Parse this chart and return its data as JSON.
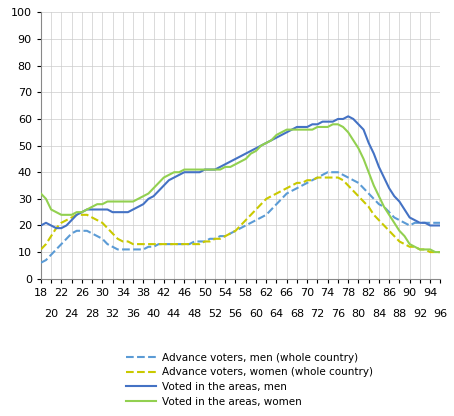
{
  "ages": [
    18,
    19,
    20,
    21,
    22,
    23,
    24,
    25,
    26,
    27,
    28,
    29,
    30,
    31,
    32,
    33,
    34,
    35,
    36,
    37,
    38,
    39,
    40,
    41,
    42,
    43,
    44,
    45,
    46,
    47,
    48,
    49,
    50,
    51,
    52,
    53,
    54,
    55,
    56,
    57,
    58,
    59,
    60,
    61,
    62,
    63,
    64,
    65,
    66,
    67,
    68,
    69,
    70,
    71,
    72,
    73,
    74,
    75,
    76,
    77,
    78,
    79,
    80,
    81,
    82,
    83,
    84,
    85,
    86,
    87,
    88,
    89,
    90,
    91,
    92,
    93,
    94,
    95,
    96
  ],
  "advance_men": [
    6,
    7,
    9,
    11,
    13,
    15,
    17,
    18,
    18,
    18,
    17,
    16,
    15,
    13,
    12,
    11,
    11,
    11,
    11,
    11,
    11,
    12,
    12,
    13,
    13,
    13,
    13,
    13,
    13,
    13,
    14,
    14,
    14,
    15,
    15,
    16,
    16,
    17,
    18,
    19,
    20,
    21,
    22,
    23,
    24,
    26,
    28,
    30,
    32,
    33,
    34,
    35,
    36,
    37,
    38,
    39,
    40,
    40,
    40,
    39,
    38,
    37,
    36,
    34,
    32,
    30,
    28,
    27,
    25,
    23,
    22,
    21,
    20,
    21,
    21,
    21,
    21,
    21,
    21
  ],
  "advance_women": [
    11,
    13,
    16,
    19,
    21,
    22,
    23,
    24,
    24,
    24,
    23,
    22,
    21,
    19,
    17,
    15,
    14,
    14,
    13,
    13,
    13,
    13,
    13,
    13,
    13,
    13,
    13,
    13,
    13,
    13,
    13,
    13,
    14,
    14,
    15,
    15,
    16,
    17,
    18,
    20,
    22,
    24,
    26,
    28,
    30,
    31,
    32,
    33,
    34,
    35,
    36,
    36,
    37,
    37,
    38,
    38,
    38,
    38,
    38,
    37,
    35,
    33,
    31,
    29,
    27,
    24,
    22,
    20,
    18,
    16,
    14,
    13,
    12,
    12,
    11,
    11,
    10,
    10,
    10
  ],
  "voted_men": [
    20,
    21,
    20,
    19,
    19,
    20,
    22,
    24,
    25,
    26,
    26,
    26,
    26,
    26,
    25,
    25,
    25,
    25,
    26,
    27,
    28,
    30,
    31,
    33,
    35,
    37,
    38,
    39,
    40,
    40,
    40,
    40,
    41,
    41,
    41,
    42,
    43,
    44,
    45,
    46,
    47,
    48,
    49,
    50,
    51,
    52,
    53,
    54,
    55,
    56,
    57,
    57,
    57,
    58,
    58,
    59,
    59,
    59,
    60,
    60,
    61,
    60,
    58,
    56,
    51,
    47,
    42,
    38,
    34,
    31,
    29,
    26,
    23,
    22,
    21,
    21,
    20,
    20,
    20
  ],
  "voted_women": [
    32,
    30,
    26,
    25,
    24,
    24,
    24,
    25,
    25,
    26,
    27,
    28,
    28,
    29,
    29,
    29,
    29,
    29,
    29,
    30,
    31,
    32,
    34,
    36,
    38,
    39,
    40,
    40,
    41,
    41,
    41,
    41,
    41,
    41,
    41,
    41,
    42,
    42,
    43,
    44,
    45,
    47,
    48,
    50,
    51,
    52,
    54,
    55,
    56,
    56,
    56,
    56,
    56,
    56,
    57,
    57,
    57,
    58,
    58,
    57,
    55,
    52,
    49,
    45,
    40,
    35,
    31,
    27,
    24,
    21,
    18,
    16,
    13,
    12,
    11,
    11,
    11,
    10,
    10
  ],
  "ylim": [
    0,
    100
  ],
  "xtick_top": [
    18,
    22,
    26,
    30,
    34,
    38,
    42,
    46,
    50,
    54,
    58,
    62,
    66,
    70,
    74,
    78,
    82,
    86,
    90,
    94
  ],
  "xtick_bottom": [
    20,
    24,
    28,
    32,
    36,
    40,
    44,
    48,
    52,
    56,
    60,
    64,
    68,
    72,
    76,
    80,
    84,
    88,
    92,
    96
  ],
  "yticks": [
    0,
    10,
    20,
    30,
    40,
    50,
    60,
    70,
    80,
    90,
    100
  ],
  "legend_labels": [
    "Advance voters, men (whole country)",
    "Advance voters, women (whole country)",
    "Voted in the areas, men",
    "Voted in the areas, women"
  ],
  "line_color_advance_men": "#5b9bd5",
  "line_color_advance_women": "#c9c900",
  "line_color_voted_men": "#4472c4",
  "line_color_voted_women": "#92d050"
}
